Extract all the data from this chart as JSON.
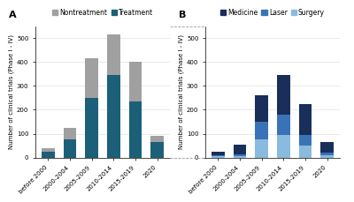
{
  "categories": [
    "before 2000",
    "2000-2004",
    "2005-2009",
    "2010-2014",
    "2015-2019",
    "2020"
  ],
  "A": {
    "treatment": [
      25,
      75,
      250,
      345,
      235,
      65
    ],
    "nontreatment": [
      15,
      50,
      165,
      170,
      165,
      25
    ],
    "color_treatment": "#1b6078",
    "color_nontreatment": "#a0a0a0",
    "ylabel": "Number of clinical trials (Phase I - IV)",
    "ylim": [
      0,
      550
    ],
    "yticks": [
      0,
      100,
      200,
      300,
      400,
      500
    ],
    "legend_nontreatment": "Nontreatment",
    "legend_treatment": "Treatment"
  },
  "B": {
    "surgery": [
      5,
      5,
      75,
      95,
      50,
      10
    ],
    "laser": [
      5,
      8,
      75,
      85,
      45,
      10
    ],
    "medicine": [
      15,
      40,
      110,
      165,
      130,
      45
    ],
    "color_medicine": "#1a2e5a",
    "color_laser": "#3a72b8",
    "color_surgery": "#88bbdd",
    "ylabel": "Number of clinical trials (Phase I - IV)",
    "ylim": [
      0,
      550
    ],
    "yticks": [
      0,
      100,
      200,
      300,
      400,
      500
    ],
    "legend_medicine": "Medicine",
    "legend_laser": "Laser",
    "legend_surgery": "Surgery"
  },
  "label_A": "A",
  "label_B": "B",
  "background_color": "#ffffff",
  "bar_width": 0.6,
  "tick_fontsize": 5.0,
  "label_fontsize": 5.0,
  "legend_fontsize": 5.5,
  "panel_label_fontsize": 8
}
